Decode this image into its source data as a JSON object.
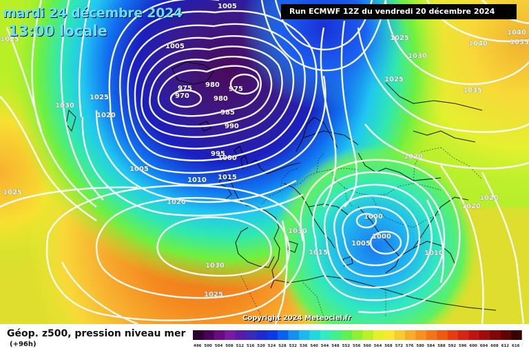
{
  "header": {
    "date_text": "mardi 24 décembre 2024",
    "time_text": "13:00 locale",
    "run_text": "Run ECMWF 12Z du vendredi 20 décembre 2024"
  },
  "copyright": "Copyright 2024 Meteociel.fr",
  "footer": {
    "title": "Géop. z500, pression niveau mer",
    "subtitle": "(+96h)"
  },
  "scale": {
    "ticks": [
      "496",
      "500",
      "504",
      "508",
      "512",
      "516",
      "520",
      "524",
      "528",
      "532",
      "536",
      "540",
      "544",
      "548",
      "552",
      "556",
      "560",
      "564",
      "568",
      "572",
      "576",
      "580",
      "584",
      "588",
      "592",
      "596",
      "600",
      "604",
      "608",
      "612",
      "616"
    ],
    "colors": [
      "#2a0030",
      "#4a0058",
      "#6a0a80",
      "#7a1aa0",
      "#5a1aa8",
      "#3a2ab8",
      "#1e2ad0",
      "#0a3ae8",
      "#0a60f0",
      "#1690f0",
      "#1cb8f0",
      "#20d8e0",
      "#30ecc0",
      "#40f08a",
      "#60f050",
      "#8ef030",
      "#baf028",
      "#e4f028",
      "#f8e830",
      "#f8cc30",
      "#f8ac28",
      "#f89020",
      "#f47418",
      "#ee5a10",
      "#e63c10",
      "#d82410",
      "#c01410",
      "#a00c0c",
      "#800808",
      "#600404",
      "#3a0000"
    ]
  },
  "isobars": {
    "labels": [
      "1005",
      "1025",
      "1040",
      "1035",
      "1040",
      "1025",
      "1030",
      "1025",
      "1035",
      "1005",
      "975",
      "980",
      "980",
      "975",
      "970",
      "985",
      "990",
      "1030",
      "1025",
      "1020",
      "995",
      "1000",
      "1005",
      "1010",
      "1015",
      "1020",
      "1025",
      "1020",
      "1020",
      "1020",
      "1030",
      "1000",
      "1005",
      "1000",
      "1010",
      "1015",
      "1030",
      "1025"
    ]
  }
}
